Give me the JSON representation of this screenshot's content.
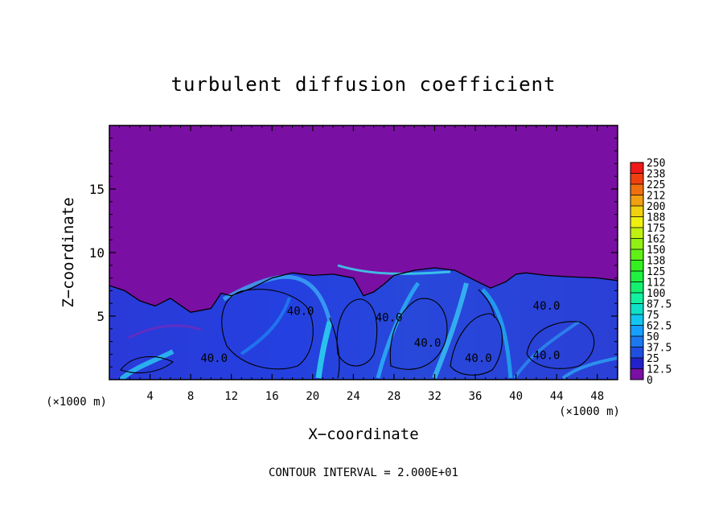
{
  "chart_data": {
    "type": "heatmap",
    "title": "turbulent diffusion coefficient",
    "xlabel": "X−coordinate",
    "ylabel": "Z−coordinate",
    "x_unit_left": "(×1000 m)",
    "x_unit_right": "(×1000 m)",
    "footer": "CONTOUR INTERVAL = 2.000E+01",
    "xlim": [
      0,
      50
    ],
    "ylim": [
      0,
      20
    ],
    "x_ticks": [
      4,
      8,
      12,
      16,
      20,
      24,
      28,
      32,
      36,
      40,
      44,
      48
    ],
    "y_ticks": [
      5,
      10,
      15
    ],
    "colorbar": {
      "labels": [
        "0",
        "12.5",
        "25",
        "37.5",
        "50",
        "62.5",
        "75",
        "87.5",
        "100",
        "112",
        "125",
        "138",
        "150",
        "162",
        "175",
        "188",
        "200",
        "212",
        "225",
        "238",
        "250"
      ],
      "colors": [
        "#7a0fa3",
        "#2222c8",
        "#1f4fe0",
        "#1b78ee",
        "#169fff",
        "#12c6f0",
        "#10e0c8",
        "#12f0a0",
        "#14f070",
        "#20f040",
        "#34f020",
        "#60f018",
        "#90f014",
        "#c0f010",
        "#f0f010",
        "#f0d010",
        "#f0a010",
        "#f07010",
        "#f04010",
        "#f01818",
        "#f08080"
      ]
    },
    "contour_levels": [
      40
    ],
    "contour_labels": [
      {
        "x": 10.3,
        "y": 1.4,
        "text": "40.0"
      },
      {
        "x": 18.8,
        "y": 5.1,
        "text": "40.0"
      },
      {
        "x": 27.5,
        "y": 4.6,
        "text": "40.0"
      },
      {
        "x": 31.3,
        "y": 2.6,
        "text": "40.0"
      },
      {
        "x": 36.3,
        "y": 1.4,
        "text": "40.0"
      },
      {
        "x": 43.0,
        "y": 5.5,
        "text": "40.0"
      },
      {
        "x": 43.0,
        "y": 1.6,
        "text": "40.0"
      }
    ],
    "boundary_layer_top": [
      [
        0,
        7.4
      ],
      [
        1.5,
        7.0
      ],
      [
        3,
        6.2
      ],
      [
        4.5,
        5.8
      ],
      [
        6,
        6.4
      ],
      [
        8,
        5.3
      ],
      [
        10,
        5.6
      ],
      [
        11,
        6.8
      ],
      [
        12,
        6.6
      ],
      [
        14,
        7.2
      ],
      [
        16,
        8.0
      ],
      [
        18,
        8.4
      ],
      [
        20,
        8.2
      ],
      [
        22,
        8.3
      ],
      [
        24,
        8.0
      ],
      [
        25,
        6.6
      ],
      [
        26,
        6.9
      ],
      [
        27,
        7.5
      ],
      [
        28,
        8.2
      ],
      [
        30,
        8.6
      ],
      [
        32,
        8.8
      ],
      [
        34,
        8.6
      ],
      [
        36,
        7.8
      ],
      [
        37.5,
        7.2
      ],
      [
        39,
        7.7
      ],
      [
        40,
        8.3
      ],
      [
        41,
        8.4
      ],
      [
        43,
        8.2
      ],
      [
        45,
        8.1
      ],
      [
        48,
        8.0
      ],
      [
        50,
        7.8
      ]
    ]
  }
}
